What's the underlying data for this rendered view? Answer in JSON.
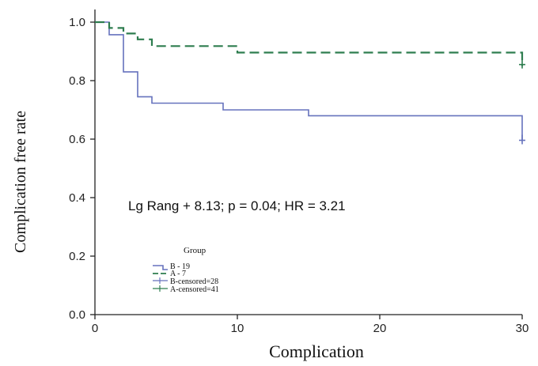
{
  "chart_data": {
    "type": "line",
    "xlabel": "Complication",
    "ylabel": "Complication free rate",
    "xlim": [
      0,
      31
    ],
    "ylim": [
      0,
      1.05
    ],
    "x_ticks": [
      "0",
      "10",
      "20",
      "30"
    ],
    "y_ticks": [
      "0.0",
      "0.2",
      "0.4",
      "0.6",
      "0.8",
      "1.0"
    ],
    "annotation": "Lg Rang + 8.13; p = 0.04; HR = 3.21",
    "legend": {
      "title": "Group",
      "entries": [
        "B - 19",
        "A - 7",
        "B-censored=28",
        "A-censored=41"
      ],
      "placement": "lower-left"
    },
    "series": [
      {
        "name": "B - 19",
        "color": "#6672bd",
        "style": "solid",
        "step": true,
        "x": [
          0,
          1,
          1,
          2,
          2,
          3,
          3,
          4,
          4,
          9,
          9,
          15,
          15,
          30,
          30
        ],
        "y": [
          1.0,
          1.0,
          0.957,
          0.957,
          0.83,
          0.83,
          0.745,
          0.745,
          0.723,
          0.723,
          0.7,
          0.7,
          0.68,
          0.68,
          0.596
        ]
      },
      {
        "name": "A - 7",
        "color": "#2e7d4f",
        "style": "dashed",
        "step": true,
        "x": [
          0,
          1,
          1,
          2,
          2,
          3,
          3,
          4,
          4,
          10,
          10,
          30,
          30
        ],
        "y": [
          1.0,
          1.0,
          0.98,
          0.98,
          0.961,
          0.961,
          0.941,
          0.941,
          0.918,
          0.918,
          0.896,
          0.896,
          0.85
        ]
      }
    ],
    "censor_marks": [
      {
        "series": "B-censored=28",
        "color": "#6672bd",
        "x": 30,
        "y": 0.596
      },
      {
        "series": "A-censored=41",
        "color": "#2e7d4f",
        "x": 30,
        "y": 0.855
      }
    ]
  }
}
